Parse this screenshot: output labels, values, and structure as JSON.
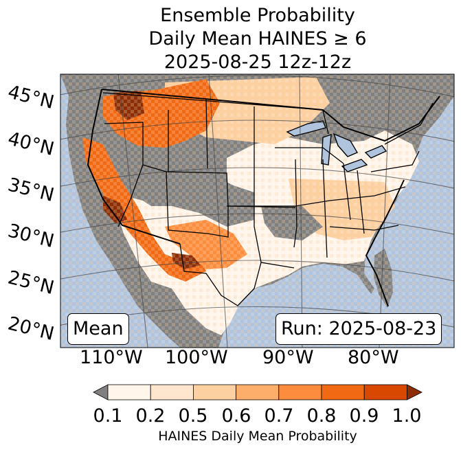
{
  "title": {
    "line1": "Ensemble Probability",
    "line2": "Daily Mean HAINES ≥ 6",
    "line3": "2025-08-25 12z-12z"
  },
  "map": {
    "stat_label": "Mean",
    "run_label": "Run: 2025-08-23",
    "lat_labels": [
      "45°N",
      "40°N",
      "35°N",
      "30°N",
      "25°N",
      "20°N"
    ],
    "lon_labels": [
      "110°W",
      "100°W",
      "90°W",
      "80°W"
    ],
    "colors": {
      "ocean": "#b0c4de",
      "no_data_land": "#808080",
      "level_0_1": "#fff5eb",
      "level_0_2": "#fee6ce",
      "level_0_5": "#fdd0a2",
      "level_0_6": "#fdae6b",
      "level_0_7": "#fd8d3c",
      "level_0_8": "#f16913",
      "level_0_9": "#d94801",
      "level_1_0": "#8c2d04"
    }
  },
  "colorbar": {
    "ticks": [
      "0.1",
      "0.2",
      "0.5",
      "0.6",
      "0.7",
      "0.8",
      "0.9",
      "1.0"
    ],
    "label": "HAINES Daily Mean Probability"
  }
}
